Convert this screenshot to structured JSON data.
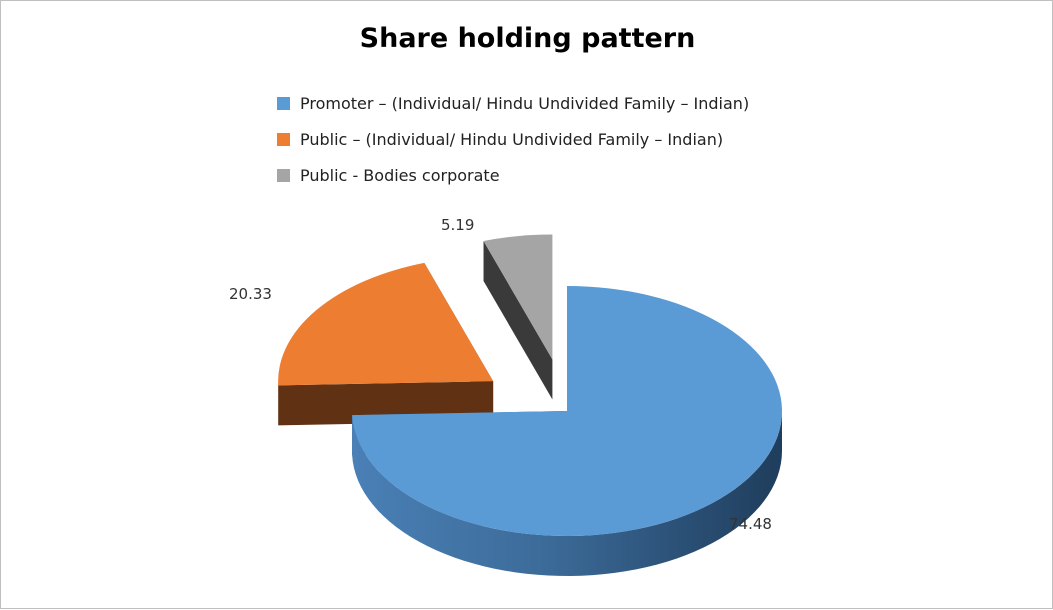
{
  "chart_data": {
    "type": "pie",
    "title": "Share holding pattern",
    "categories": [
      "Promoter – (Individual/ Hindu Undivided Family – Indian)",
      "Public  – (Individual/ Hindu Undivided Family – Indian)",
      "Public - Bodies corporate"
    ],
    "values": [
      74.48,
      20.33,
      5.19
    ],
    "value_labels": [
      "74.48",
      "20.33",
      "5.19"
    ],
    "colors": [
      "#5B9BD5",
      "#ED7D31",
      "#A5A5A5"
    ],
    "side_colors": [
      "#2E5A86",
      "#613113",
      "#3A3A3A"
    ],
    "style": "3d-exploded",
    "legend": "top"
  }
}
